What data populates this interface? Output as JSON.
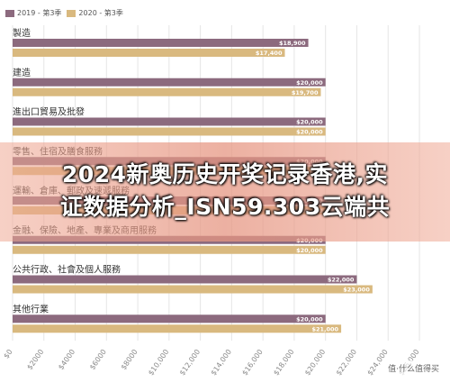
{
  "chart_data": {
    "type": "bar",
    "orientation": "horizontal",
    "categories": [
      "製造",
      "建造",
      "進出口貿易及批發",
      "零售、住宿及膳食服務",
      "運輸、倉庫、郵政及速遞服務",
      "金融、保險、地產、專業及商用服務",
      "公共行政、社會及個人服務",
      "其他行業"
    ],
    "series": [
      {
        "name": "2019 - 第3季",
        "color": "#8c6a7e",
        "values": [
          18900,
          20000,
          20000,
          20000,
          20000,
          20000,
          22000,
          20000
        ],
        "labels": [
          "$18,900",
          "$20,000",
          "$20,000",
          "$20,000",
          "$20,000",
          "$20,000",
          "$22,000",
          "$20,000"
        ]
      },
      {
        "name": "2020 - 第3季",
        "color": "#d9b97f",
        "values": [
          17400,
          19700,
          20000,
          20000,
          20000,
          20000,
          23000,
          21000
        ],
        "labels": [
          "$17,400",
          "$19,700",
          "$20,000",
          "$20,000",
          "$20,000",
          "$20,000",
          "$23,000",
          "$21,000"
        ]
      }
    ],
    "xlim": [
      0,
      26000
    ],
    "xticks": [
      0,
      2000,
      4000,
      6000,
      8000,
      10000,
      12000,
      14000,
      16000,
      18000,
      20000,
      22000,
      24000,
      26000
    ],
    "xtick_labels": [
      "$0",
      "$2000",
      "$4000",
      "$6000",
      "$8000",
      "$10,000",
      "$12,000",
      "$14,000",
      "$16,000",
      "$18,000",
      "$20,000",
      "$22,000",
      "$24,000",
      "$26,000"
    ],
    "grid": true,
    "legend": "top-left"
  },
  "overlay": {
    "line1": "2024新奥历史开奖记录香港,实",
    "line2": "证数据分析_ISN59.303云端共"
  },
  "watermark": "值·什么值得买"
}
